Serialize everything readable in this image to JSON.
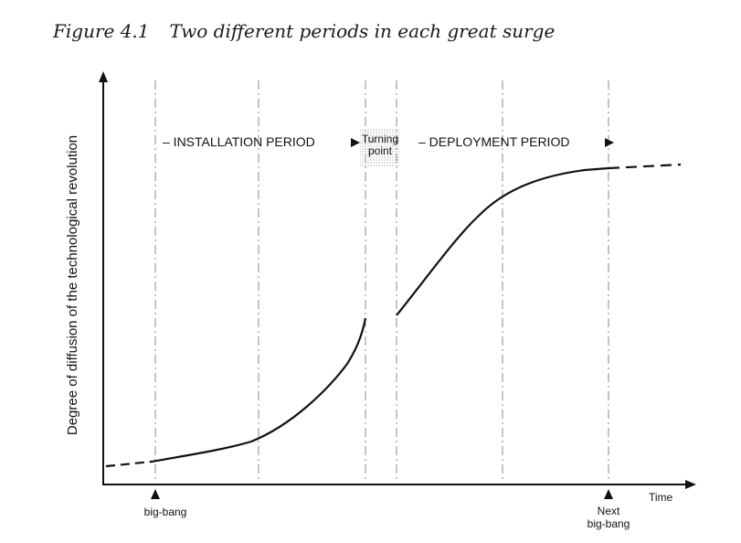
{
  "figure": {
    "number": "Figure 4.1",
    "title": "Two different periods in each great surge"
  },
  "axes": {
    "y_label": "Degree of diffusion of the technological revolution",
    "x_label": "Time"
  },
  "periods": {
    "installation": "– INSTALLATION PERIOD",
    "turning_point_line1": "Turning",
    "turning_point_line2": "point",
    "deployment": "– DEPLOYMENT PERIOD"
  },
  "markers": {
    "big_bang": "big-bang",
    "next_big_bang_line1": "Next",
    "next_big_bang_line2": "big-bang"
  }
}
